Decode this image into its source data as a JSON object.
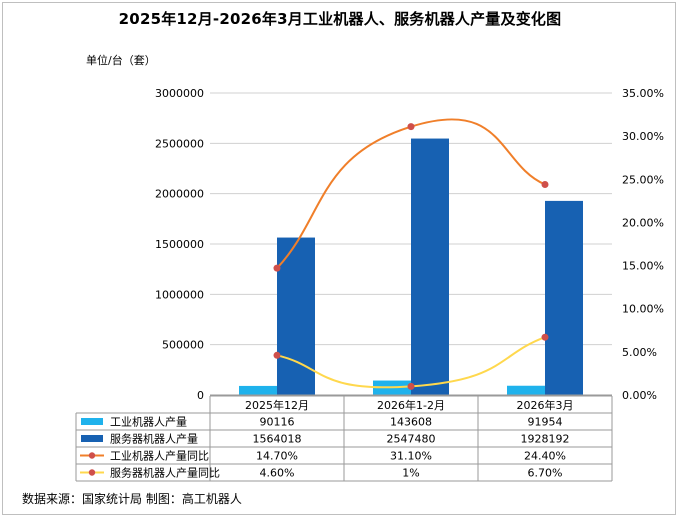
{
  "title": "2025年12月-2026年3月工业机器人、服务机器人产量及变化图",
  "unit_label": "单位/台（套）",
  "source": "数据来源：国家统计局 制图：高工机器人",
  "chart_data": {
    "type": "bar",
    "categories": [
      "2025年12月",
      "2026年1-2月",
      "2026年3月"
    ],
    "y_left": {
      "min": 0,
      "max": 3000000,
      "step": 500000,
      "ticks": [
        "0",
        "500000",
        "1000000",
        "1500000",
        "2000000",
        "2500000",
        "3000000"
      ]
    },
    "y_right": {
      "min": 0,
      "max": 35,
      "step": 5,
      "ticks": [
        "0.00%",
        "5.00%",
        "10.00%",
        "15.00%",
        "20.00%",
        "25.00%",
        "30.00%",
        "35.00%"
      ]
    },
    "series": [
      {
        "name": "工业机器人产量",
        "kind": "bar",
        "axis": "left",
        "color": "#1fb2ec",
        "values": [
          90116,
          143608,
          91954
        ],
        "labels": [
          "90116",
          "143608",
          "91954"
        ]
      },
      {
        "name": "服务器机器人产量",
        "kind": "bar",
        "axis": "left",
        "color": "#1761b2",
        "values": [
          1564018,
          2547480,
          1928192
        ],
        "labels": [
          "1564018",
          "2547480",
          "1928192"
        ]
      },
      {
        "name": "工业机器人产量同比",
        "kind": "line",
        "axis": "right",
        "color": "#f07f2a",
        "marker_color": "#cf4f4a",
        "values": [
          14.7,
          31.1,
          24.4
        ],
        "labels": [
          "14.70%",
          "31.10%",
          "24.40%"
        ]
      },
      {
        "name": "服务器机器人产量同比",
        "kind": "line",
        "axis": "right",
        "color": "#ffd84d",
        "marker_color": "#cf4f4a",
        "values": [
          4.6,
          1,
          6.7
        ],
        "labels": [
          "4.60%",
          "1%",
          "6.70%"
        ]
      }
    ]
  }
}
